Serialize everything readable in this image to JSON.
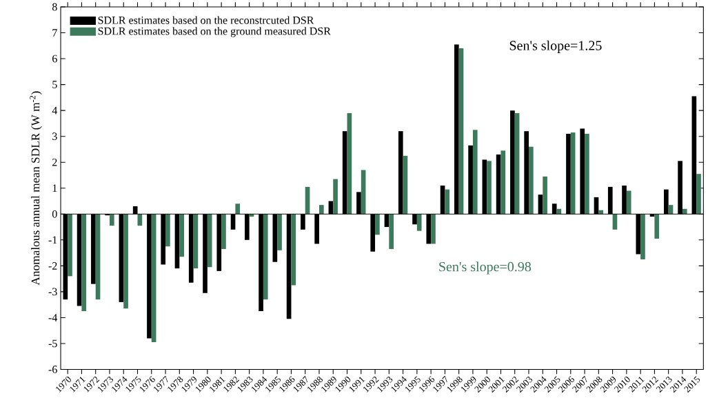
{
  "chart_data": {
    "type": "bar",
    "ylabel": "Anomalous annual mean SDLR (W m$^{-2}$)",
    "categories": [
      "1970",
      "1971",
      "1972",
      "1973",
      "1974",
      "1975",
      "1976",
      "1977",
      "1978",
      "1979",
      "1980",
      "1981",
      "1982",
      "1983",
      "1984",
      "1985",
      "1986",
      "1987",
      "1988",
      "1989",
      "1990",
      "1991",
      "1992",
      "1993",
      "1994",
      "1995",
      "1996",
      "1997",
      "1998",
      "1999",
      "2000",
      "2001",
      "2002",
      "2003",
      "2004",
      "2005",
      "2006",
      "2007",
      "2008",
      "2009",
      "2010",
      "2011",
      "2012",
      "2013",
      "2014",
      "2015"
    ],
    "series": [
      {
        "name": "SDLR estimates based on the reconstrcuted DSR",
        "color": "#000000",
        "values": [
          -3.3,
          -3.55,
          -2.7,
          -0.05,
          -3.4,
          0.3,
          -4.8,
          -1.95,
          -2.1,
          -2.65,
          -3.05,
          -2.2,
          -0.6,
          -1.0,
          -3.75,
          -1.85,
          -4.05,
          -0.6,
          -1.15,
          0.5,
          3.2,
          0.85,
          -1.45,
          -0.5,
          3.2,
          -0.4,
          -1.15,
          1.1,
          6.55,
          2.65,
          2.1,
          2.3,
          4.0,
          3.2,
          0.75,
          0.4,
          3.1,
          3.3,
          0.65,
          1.05,
          1.1,
          -1.55,
          -0.1,
          0.95,
          2.05,
          4.55
        ]
      },
      {
        "name": "SDLR estimates based on the ground measured DSR",
        "color": "#3d7a5c",
        "values": [
          -2.4,
          -3.75,
          -3.3,
          -0.45,
          -3.65,
          -0.45,
          -4.95,
          -1.25,
          -1.65,
          -2.1,
          -2.05,
          -1.35,
          0.4,
          -0.1,
          -3.3,
          -1.4,
          -2.75,
          1.05,
          0.35,
          1.35,
          3.9,
          1.7,
          -0.8,
          -1.35,
          2.25,
          -0.65,
          -1.15,
          0.95,
          6.4,
          3.25,
          2.05,
          2.45,
          3.9,
          2.6,
          1.45,
          0.2,
          3.15,
          3.1,
          0.15,
          -0.6,
          0.9,
          -1.75,
          -0.95,
          0.35,
          0.2,
          1.55
        ]
      }
    ],
    "ylim": [
      -6,
      8
    ],
    "yticks": [
      -6,
      -5,
      -4,
      -3,
      -2,
      -1,
      0,
      1,
      2,
      3,
      4,
      5,
      6,
      7,
      8
    ],
    "ref_lines": [
      {
        "axis": "y",
        "value": 0,
        "color": "#000000"
      }
    ],
    "annotations": [
      "Sen's slope=1.25",
      "Sen's slope=0.98"
    ],
    "legend": "top left"
  }
}
